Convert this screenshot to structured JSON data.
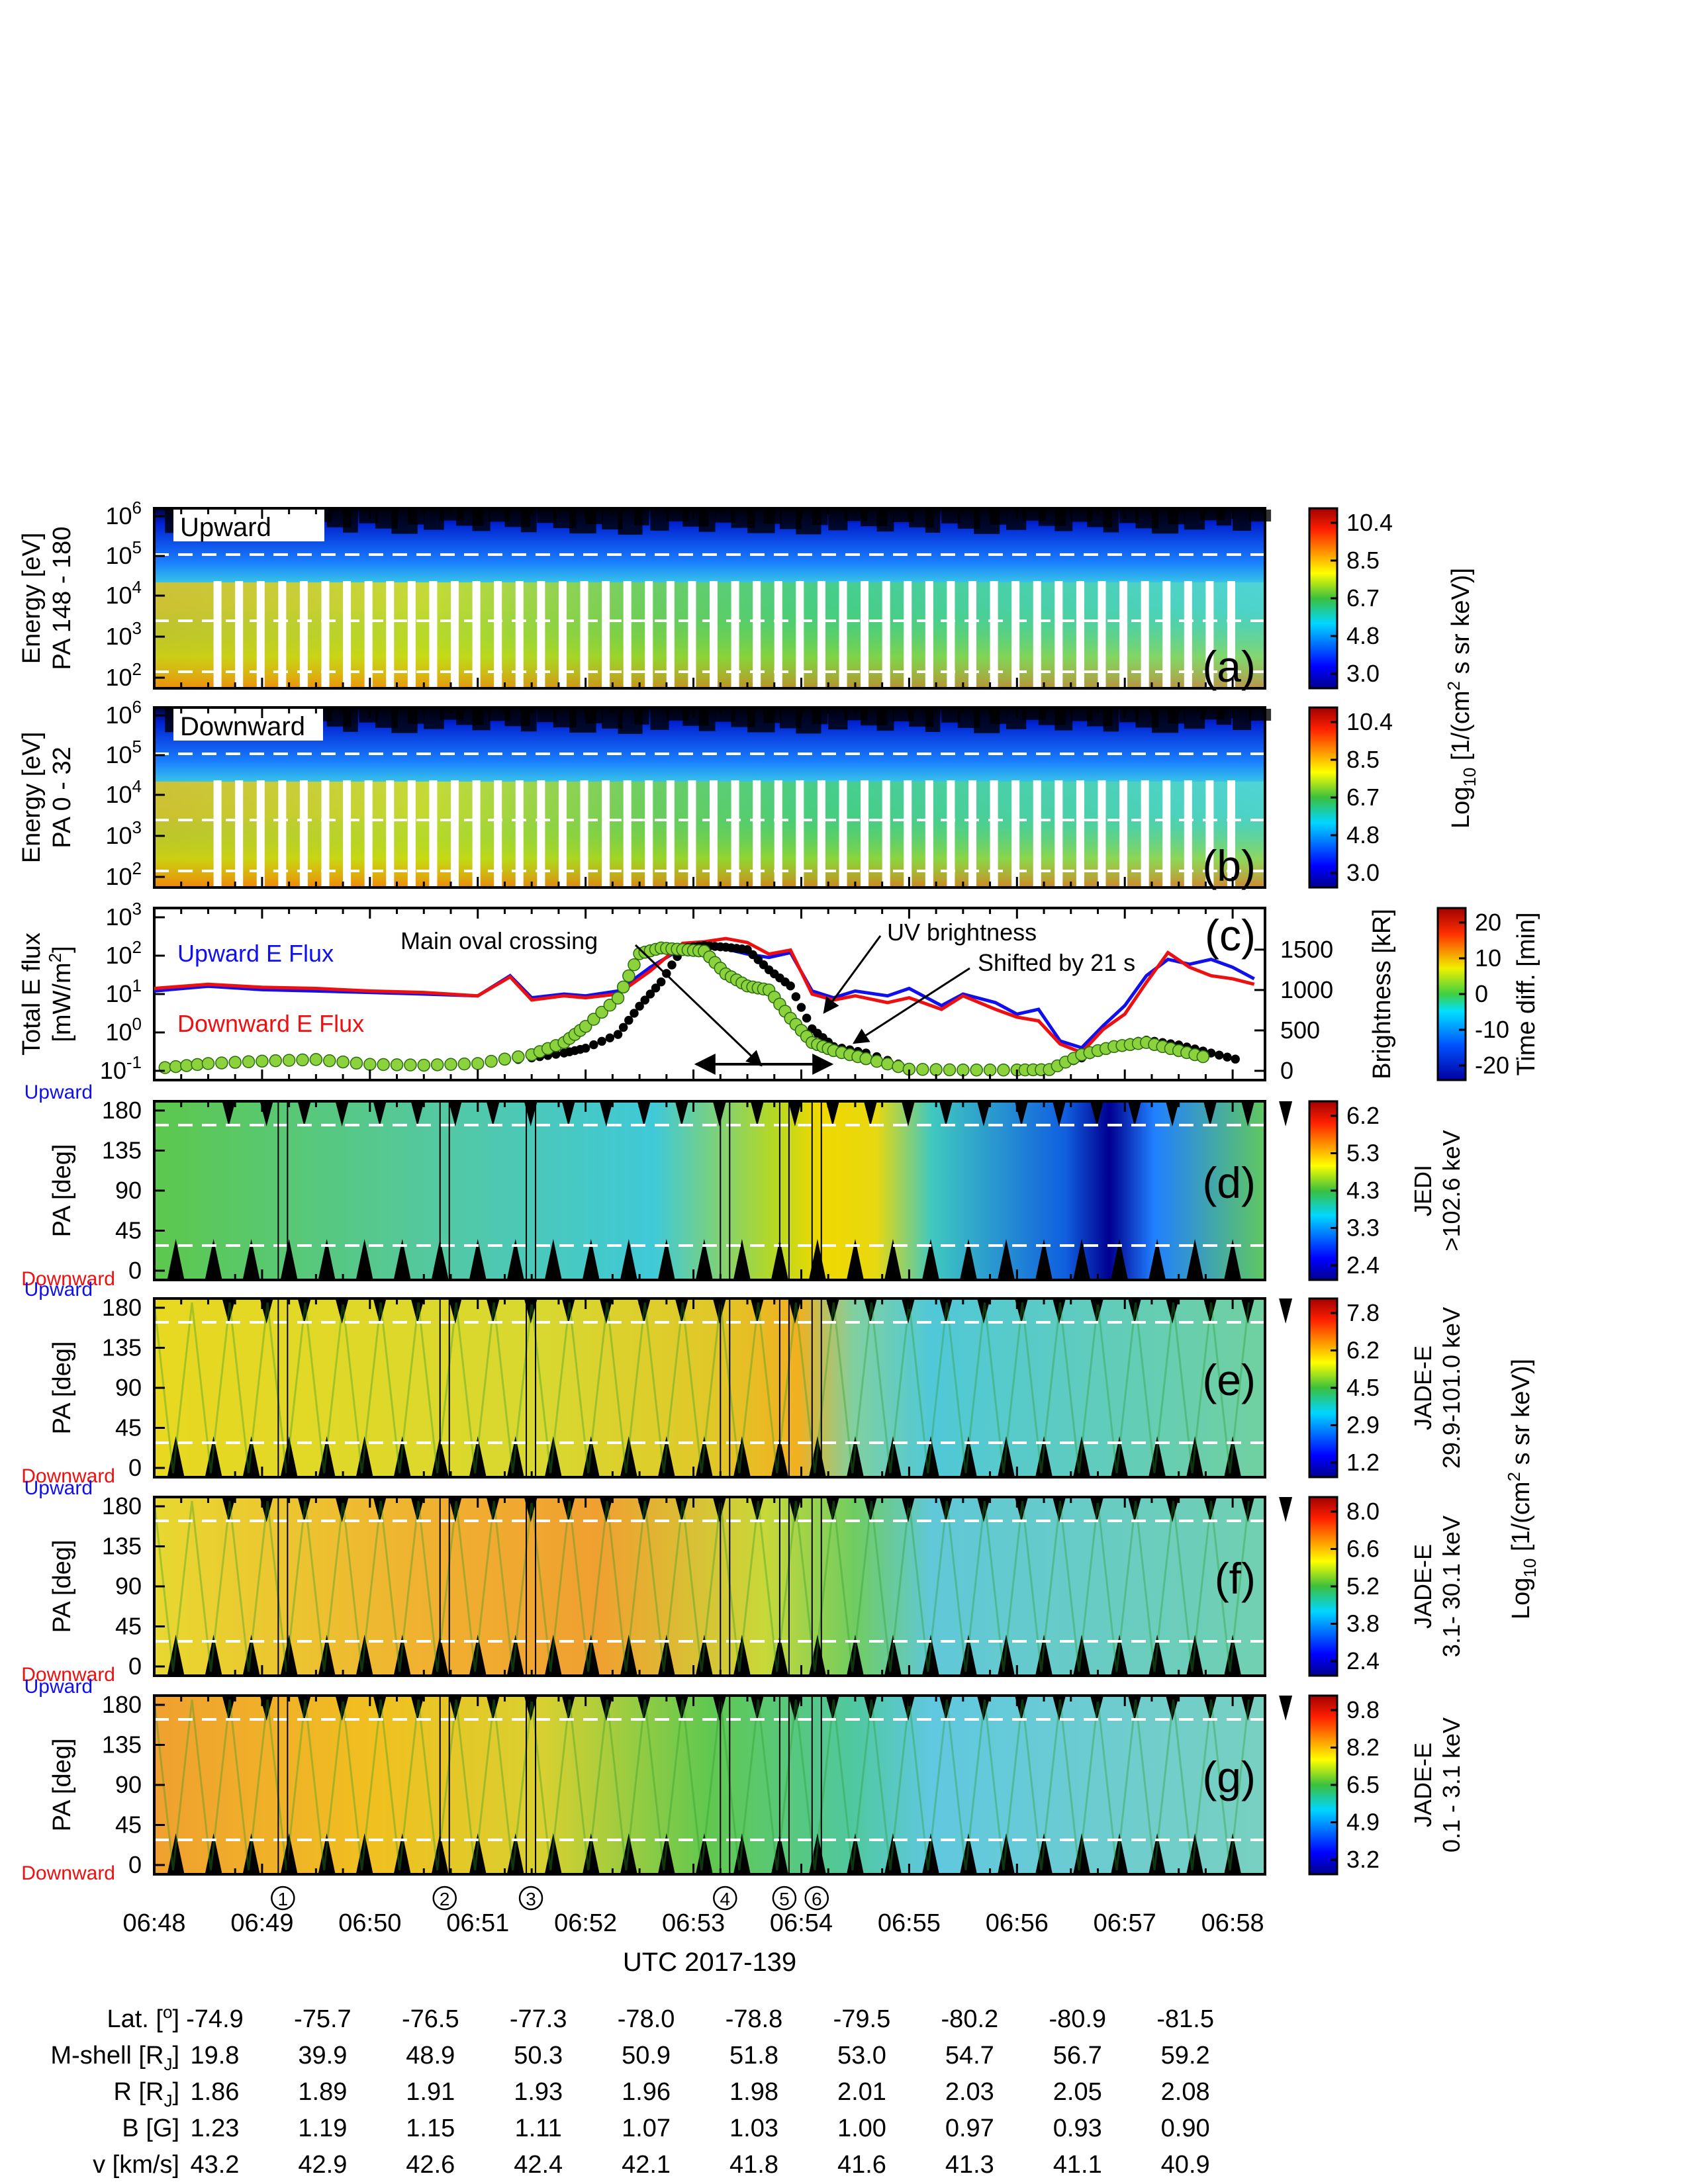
{
  "figure": {
    "xaxis_title": "UTC 2017-139",
    "x_ticks": [
      "06:48",
      "06:49",
      "06:50",
      "06:51",
      "06:52",
      "06:53",
      "06:54",
      "06:55",
      "06:56",
      "06:57",
      "06:58"
    ],
    "event_markers": [
      {
        "label": "1",
        "minute": 49.15
      },
      {
        "label": "2",
        "minute": 50.65
      },
      {
        "label": "3",
        "minute": 51.45
      },
      {
        "label": "4",
        "minute": 53.25
      },
      {
        "label": "5",
        "minute": 53.8
      },
      {
        "label": "6",
        "minute": 54.1
      }
    ],
    "shared_colorbar_label_ab": "Log10 [1/(cm2 s sr keV)]",
    "shared_colorbar_label_efg": "Log10 [1/(cm2 s sr keV)]",
    "up_word": "Upward",
    "down_word": "Downward"
  },
  "panels": [
    {
      "id": "a",
      "tag": "(a)",
      "kind": "energy-spectrogram",
      "overlay_label": "Upward",
      "ylabel": "Energy [eV]",
      "ylabel2": "PA 148 - 180",
      "yticks": [
        "10^2",
        "10^3",
        "10^4",
        "10^5",
        "10^6"
      ],
      "colorbar_ticks": [
        "10.4",
        "8.5",
        "6.7",
        "4.8",
        "3.0"
      ],
      "colorbar_range": [
        3.0,
        10.4
      ]
    },
    {
      "id": "b",
      "tag": "(b)",
      "kind": "energy-spectrogram",
      "overlay_label": "Downward",
      "ylabel": "Energy [eV]",
      "ylabel2": "PA 0 - 32",
      "yticks": [
        "10^2",
        "10^3",
        "10^4",
        "10^5",
        "10^6"
      ],
      "colorbar_ticks": [
        "10.4",
        "8.5",
        "6.7",
        "4.8",
        "3.0"
      ],
      "colorbar_range": [
        3.0,
        10.4
      ]
    },
    {
      "id": "c",
      "tag": "(c)",
      "kind": "line-scatter",
      "ylabel": "Total E flux",
      "ylabel2": "[mW/m2]",
      "yticks": [
        "10^-1",
        "10^0",
        "10^1",
        "10^2",
        "10^3"
      ],
      "right_ylabel": "Brightness [kR]",
      "right_yticks": [
        "0",
        "500",
        "1000",
        "1500"
      ],
      "colorbar_ticks": [
        "20",
        "10",
        "0",
        "-10",
        "-20"
      ],
      "colorbar_label": "Time diff. [min]",
      "legend_up": "Upward E Flux",
      "legend_down": "Downward E Flux",
      "annot_main_oval": "Main oval crossing",
      "annot_uv": "UV brightness",
      "annot_shift": "Shifted by 21 s"
    },
    {
      "id": "d",
      "tag": "(d)",
      "kind": "pa-spectrogram",
      "ylabel": "PA [deg]",
      "yticks": [
        "0",
        "45",
        "90",
        "135",
        "180"
      ],
      "colorbar_ticks": [
        "6.2",
        "5.3",
        "4.3",
        "3.3",
        "2.4"
      ],
      "colorbar_range": [
        2.4,
        6.2
      ],
      "instrument": "JEDI",
      "energy": ">102.6 keV"
    },
    {
      "id": "e",
      "tag": "(e)",
      "kind": "pa-spectrogram",
      "ylabel": "PA [deg]",
      "yticks": [
        "0",
        "45",
        "90",
        "135",
        "180"
      ],
      "colorbar_ticks": [
        "7.8",
        "6.2",
        "4.5",
        "2.9",
        "1.2"
      ],
      "colorbar_range": [
        1.2,
        7.8
      ],
      "instrument": "JADE-E",
      "energy": "29.9-101.0 keV"
    },
    {
      "id": "f",
      "tag": "(f)",
      "kind": "pa-spectrogram",
      "ylabel": "PA [deg]",
      "yticks": [
        "0",
        "45",
        "90",
        "135",
        "180"
      ],
      "colorbar_ticks": [
        "8.0",
        "6.6",
        "5.2",
        "3.8",
        "2.4"
      ],
      "colorbar_range": [
        2.4,
        8.0
      ],
      "instrument": "JADE-E",
      "energy": "3.1- 30.1 keV"
    },
    {
      "id": "g",
      "tag": "(g)",
      "kind": "pa-spectrogram",
      "ylabel": "PA [deg]",
      "yticks": [
        "0",
        "45",
        "90",
        "135",
        "180"
      ],
      "colorbar_ticks": [
        "9.8",
        "8.2",
        "6.5",
        "4.9",
        "3.2"
      ],
      "colorbar_range": [
        3.2,
        9.8
      ],
      "instrument": "JADE-E",
      "energy": "0.1 -  3.1 keV"
    }
  ],
  "ephemeris": {
    "rows": [
      {
        "label": "Lat. [o]",
        "values": [
          "-74.9",
          "-75.7",
          "-76.5",
          "-77.3",
          "-78.0",
          "-78.8",
          "-79.5",
          "-80.2",
          "-80.9",
          "-81.5"
        ]
      },
      {
        "label": "M-shell [RJ]",
        "values": [
          "19.8",
          "39.9",
          "48.9",
          "50.3",
          "50.9",
          "51.8",
          "53.0",
          "54.7",
          "56.7",
          "59.2"
        ]
      },
      {
        "label": "R [RJ]",
        "values": [
          "1.86",
          "1.89",
          "1.91",
          "1.93",
          "1.96",
          "1.98",
          "2.01",
          "2.03",
          "2.05",
          "2.08"
        ]
      },
      {
        "label": "B [G]",
        "values": [
          "1.23",
          "1.19",
          "1.15",
          "1.11",
          "1.07",
          "1.03",
          "1.00",
          "0.97",
          "0.93",
          "0.90"
        ]
      },
      {
        "label": "v [km/s]",
        "values": [
          "43.2",
          "42.9",
          "42.6",
          "42.4",
          "42.1",
          "41.8",
          "41.6",
          "41.3",
          "41.1",
          "40.9"
        ]
      }
    ]
  },
  "chart_data": [
    {
      "type": "line",
      "panel": "c",
      "xlabel": "UTC 2017-139",
      "x_unit": "minute after 06:00",
      "xlim": [
        48,
        58.3
      ],
      "ylabel": "Total E flux [mW/m2]",
      "yscale": "log",
      "ylim": [
        0.05,
        1000
      ],
      "x": [
        48.0,
        48.5,
        49.0,
        49.5,
        50.0,
        50.5,
        51.0,
        51.3,
        51.5,
        51.8,
        52.0,
        52.3,
        52.6,
        52.9,
        53.1,
        53.3,
        53.5,
        53.7,
        53.9,
        54.1,
        54.3,
        54.5,
        54.8,
        55.0,
        55.3,
        55.5,
        55.8,
        56.0,
        56.2,
        56.4,
        56.6,
        56.8,
        57.0,
        57.2,
        57.4,
        57.6,
        57.8,
        58.0,
        58.2
      ],
      "series": [
        {
          "name": "Upward E Flux",
          "color": "#1010ee",
          "values": [
            12,
            16,
            13,
            12,
            11,
            10,
            9,
            30,
            8,
            10,
            9,
            12,
            50,
            160,
            170,
            150,
            110,
            90,
            120,
            12,
            8,
            12,
            9,
            14,
            5,
            10,
            6,
            3,
            4,
            0.6,
            0.4,
            1.5,
            5,
            30,
            80,
            60,
            80,
            50,
            25
          ]
        },
        {
          "name": "Downward E Flux",
          "color": "#ee1010",
          "values": [
            14,
            18,
            15,
            14,
            12,
            11,
            9,
            28,
            7,
            9,
            8,
            10,
            40,
            210,
            230,
            280,
            220,
            110,
            140,
            10,
            7,
            9,
            6,
            8,
            4,
            9,
            4,
            2.5,
            2,
            0.5,
            0.3,
            1.2,
            3,
            20,
            120,
            50,
            30,
            25,
            18
          ]
        }
      ],
      "right_axis": {
        "ylabel": "Brightness [kR]",
        "ylim": [
          0,
          1900
        ],
        "uv_brightness_green": {
          "x": [
            48.1,
            48.5,
            49.0,
            49.5,
            50.0,
            50.5,
            51.0,
            51.5,
            51.8,
            52.0,
            52.3,
            52.5,
            52.7,
            52.9,
            53.1,
            53.3,
            53.5,
            53.7,
            53.9,
            54.1,
            54.3,
            54.6,
            55.0,
            55.5,
            56.0,
            56.3,
            56.6,
            56.9,
            57.2,
            57.5,
            57.8
          ],
          "values": [
            40,
            90,
            120,
            140,
            80,
            70,
            90,
            200,
            350,
            550,
            900,
            1450,
            1520,
            1500,
            1480,
            1200,
            1050,
            1000,
            650,
            350,
            250,
            150,
            20,
            10,
            10,
            15,
            200,
            300,
            350,
            250,
            150
          ]
        },
        "uv_brightness_shifted_black": {
          "x": [
            48.1,
            48.5,
            49.0,
            49.5,
            50.0,
            50.5,
            51.0,
            51.5,
            51.8,
            52.0,
            52.3,
            52.5,
            52.7,
            52.9,
            53.1,
            53.3,
            53.5,
            53.7,
            53.9,
            54.1,
            54.3,
            54.6,
            55.0,
            55.5,
            56.0,
            56.3,
            56.6,
            56.9,
            57.2,
            57.5,
            57.8,
            58.1
          ],
          "values": [
            60,
            90,
            130,
            150,
            90,
            70,
            80,
            160,
            220,
            280,
            450,
            800,
            1100,
            1520,
            1550,
            1530,
            1500,
            1250,
            1050,
            520,
            300,
            220,
            40,
            20,
            15,
            25,
            160,
            320,
            380,
            320,
            220,
            120
          ]
        }
      }
    }
  ]
}
